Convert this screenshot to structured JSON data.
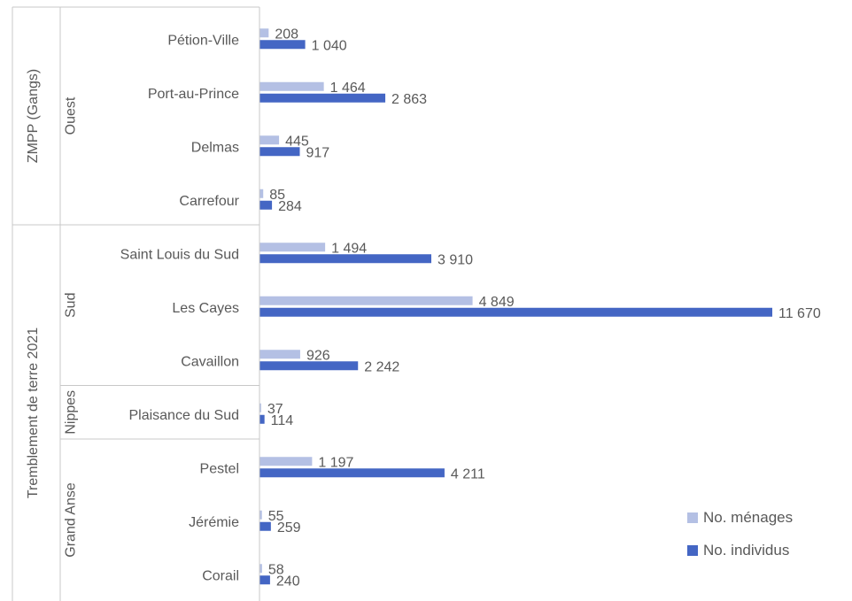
{
  "chart_data": {
    "type": "bar",
    "orientation": "horizontal",
    "groups": [
      {
        "name": "ZMPP (Gangs)",
        "subgroups": [
          {
            "name": "Ouest",
            "categories": [
              "Pétion-Ville",
              "Port-au-Prince",
              "Delmas",
              "Carrefour"
            ]
          }
        ]
      },
      {
        "name": "Tremblement de terre 2021",
        "subgroups": [
          {
            "name": "Sud",
            "categories": [
              "Saint Louis du Sud",
              "Les Cayes",
              "Cavaillon"
            ]
          },
          {
            "name": "Nippes",
            "categories": [
              "Plaisance du Sud"
            ]
          },
          {
            "name": "Grand Anse",
            "categories": [
              "Pestel",
              "Jérémie",
              "Corail"
            ]
          }
        ]
      }
    ],
    "categories": [
      "Pétion-Ville",
      "Port-au-Prince",
      "Delmas",
      "Carrefour",
      "Saint Louis du Sud",
      "Les Cayes",
      "Cavaillon",
      "Plaisance du Sud",
      "Pestel",
      "Jérémie",
      "Corail"
    ],
    "series": [
      {
        "name": "No. ménages",
        "color": "#b4c0e4",
        "values": [
          208,
          1464,
          445,
          85,
          1494,
          4849,
          926,
          37,
          1197,
          55,
          58
        ],
        "labels": [
          "208",
          "1 464",
          "445",
          "85",
          "1 494",
          "4 849",
          "926",
          "37",
          "1 197",
          "55",
          "58"
        ]
      },
      {
        "name": "No. individus",
        "color": "#4466c4",
        "values": [
          1040,
          2863,
          917,
          284,
          3910,
          11670,
          2242,
          114,
          4211,
          259,
          240
        ],
        "labels": [
          "1 040",
          "2 863",
          "917",
          "284",
          "3 910",
          "11 670",
          "2 242",
          "114",
          "4 211",
          "259",
          "240"
        ]
      }
    ],
    "xlim": [
      0,
      11670
    ],
    "legend_position": "bottom-right",
    "grid": false
  }
}
